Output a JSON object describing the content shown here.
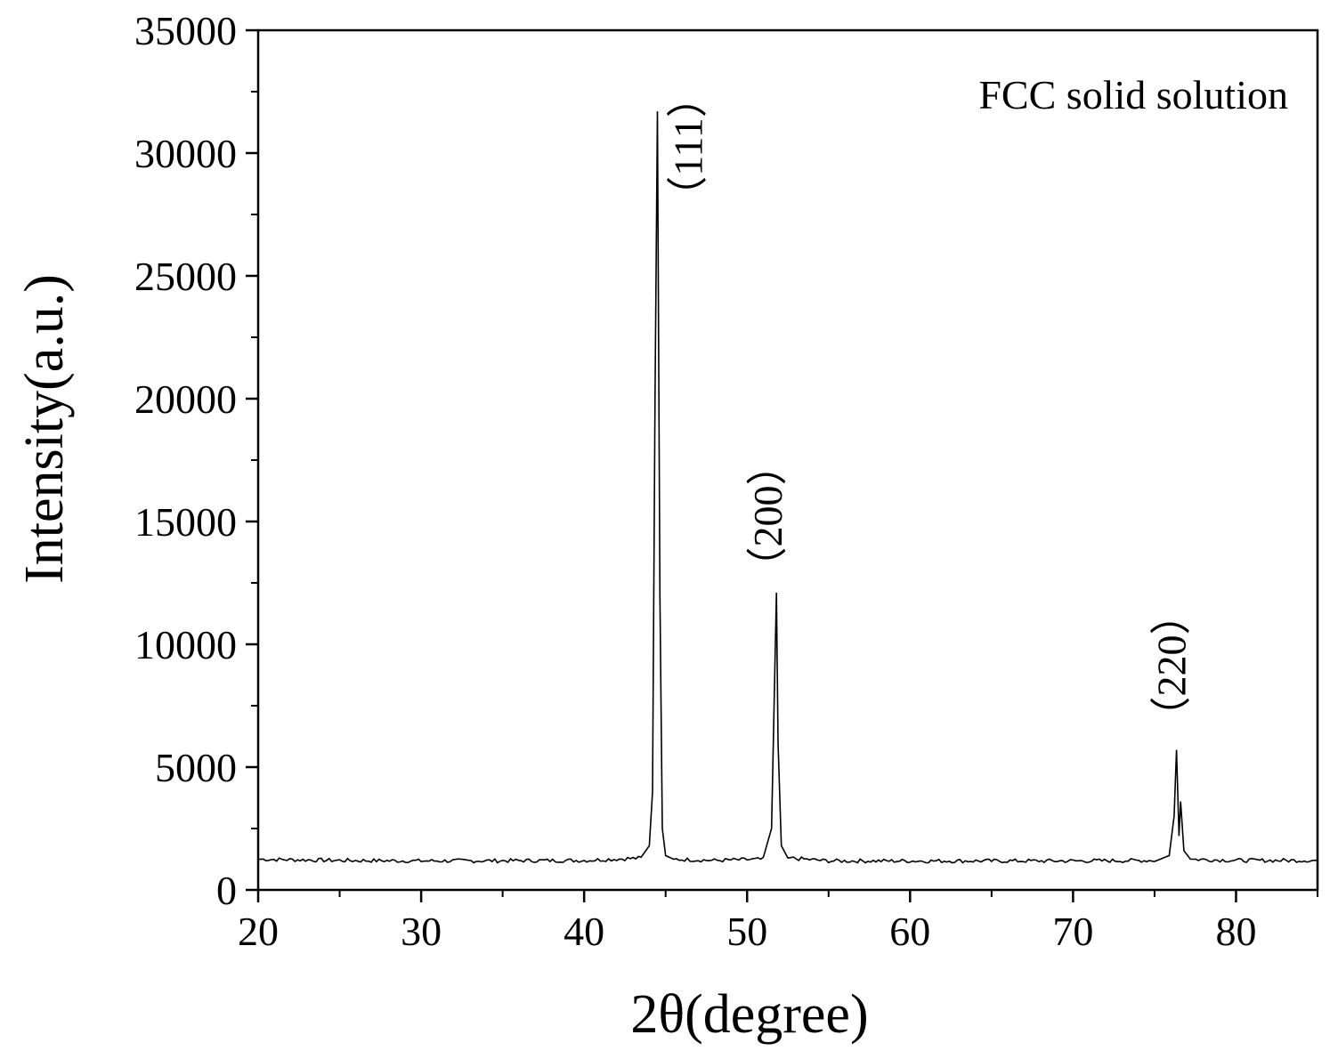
{
  "chart_data": {
    "type": "line",
    "title": "",
    "xlabel": "2θ(degree)",
    "ylabel": "Intensity(a.u.)",
    "xlim": [
      20,
      85
    ],
    "ylim": [
      0,
      35000
    ],
    "x_ticks": [
      20,
      30,
      40,
      50,
      60,
      70,
      80
    ],
    "y_ticks": [
      0,
      5000,
      10000,
      15000,
      20000,
      25000,
      30000,
      35000
    ],
    "grid": false,
    "legend": "none",
    "line_color": "#000000",
    "annotation": "FCC solid solution",
    "baseline": 1200,
    "series": [
      {
        "x": [
          20,
          25,
          30,
          35,
          40,
          43.5,
          44.0,
          44.2,
          44.35,
          44.5,
          44.65,
          44.8,
          45.0,
          45.5,
          48,
          51.0,
          51.5,
          51.7,
          51.8,
          51.9,
          52.1,
          52.5,
          55,
          60,
          65,
          70,
          75,
          75.9,
          76.2,
          76.35,
          76.5,
          76.6,
          76.8,
          77.2,
          80,
          85
        ],
        "y": [
          1250,
          1200,
          1180,
          1190,
          1200,
          1300,
          1800,
          4000,
          20000,
          31700,
          12000,
          2500,
          1400,
          1250,
          1200,
          1250,
          2500,
          9000,
          12100,
          6000,
          1800,
          1300,
          1180,
          1180,
          1180,
          1180,
          1200,
          1400,
          3000,
          5700,
          2200,
          3600,
          1600,
          1250,
          1200,
          1200
        ]
      }
    ],
    "peaks": [
      {
        "x": 44.5,
        "y": 31700,
        "label": "（111）"
      },
      {
        "x": 51.8,
        "y": 12100,
        "label": "（200）"
      },
      {
        "x": 76.35,
        "y": 5700,
        "label": "（220）"
      }
    ]
  }
}
